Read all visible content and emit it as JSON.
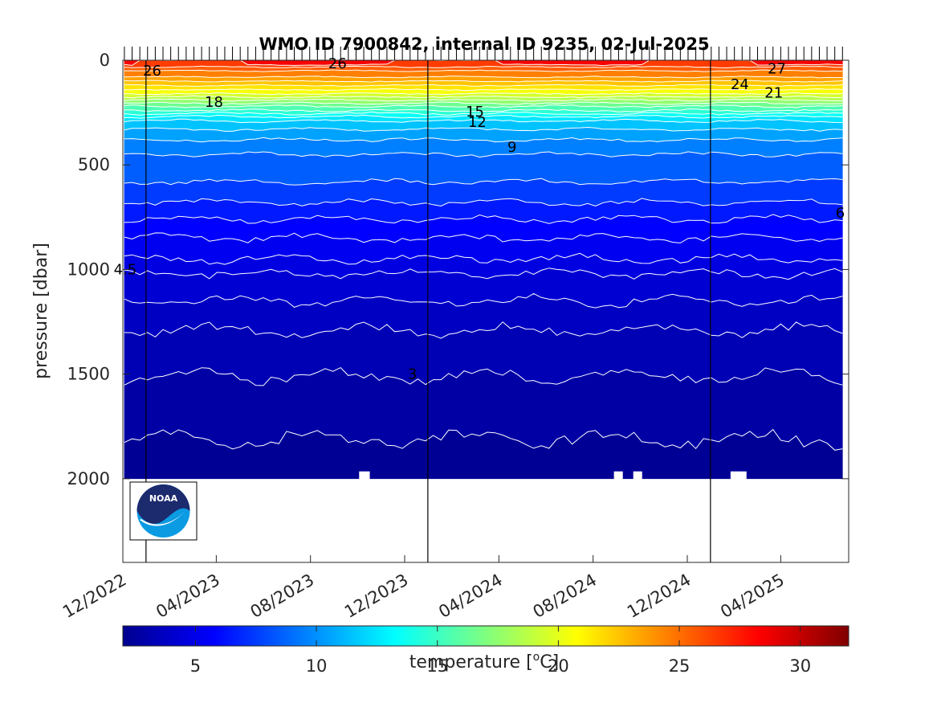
{
  "chart_data": {
    "type": "heatmap",
    "title": "WMO ID 7900842, internal ID 9235, 02-Jul-2025",
    "ylabel": "pressure [dbar]",
    "ylim": [
      0,
      2400
    ],
    "y_reversed": true,
    "y_ticks": [
      0,
      500,
      1000,
      1500,
      2000
    ],
    "y_tick_labels": [
      "0",
      "500",
      "1000",
      "1500",
      "2000"
    ],
    "x_range": [
      "2022-12-01",
      "2025-06-28"
    ],
    "x_ticks": [
      "2022-12-01",
      "2023-04-01",
      "2023-08-01",
      "2023-12-01",
      "2024-04-01",
      "2024-08-01",
      "2024-12-01",
      "2025-04-01"
    ],
    "x_tick_labels": [
      "12/2022",
      "04/2023",
      "08/2023",
      "12/2023",
      "04/2024",
      "08/2024",
      "12/2024",
      "04/2025"
    ],
    "year_lines": [
      "2022-12-31",
      "2023-12-31",
      "2024-12-31"
    ],
    "data_start": "2022-12-03",
    "data_end": "2025-06-25",
    "max_pressure": 2000,
    "isotherms": [
      {
        "temp": 27,
        "depth": 10
      },
      {
        "temp": 26,
        "depth": 32
      },
      {
        "temp": 25,
        "depth": 50
      },
      {
        "temp": 24,
        "depth": 80
      },
      {
        "temp": 23,
        "depth": 100
      },
      {
        "temp": 22,
        "depth": 120
      },
      {
        "temp": 21,
        "depth": 140
      },
      {
        "temp": 20,
        "depth": 160
      },
      {
        "temp": 19,
        "depth": 175
      },
      {
        "temp": 18,
        "depth": 190
      },
      {
        "temp": 17,
        "depth": 205
      },
      {
        "temp": 16,
        "depth": 220
      },
      {
        "temp": 15,
        "depth": 240
      },
      {
        "temp": 14,
        "depth": 255
      },
      {
        "temp": 13,
        "depth": 270
      },
      {
        "temp": 12,
        "depth": 290
      },
      {
        "temp": 11,
        "depth": 330
      },
      {
        "temp": 10,
        "depth": 380
      },
      {
        "temp": 9,
        "depth": 450
      },
      {
        "temp": 8,
        "depth": 580
      },
      {
        "temp": 7,
        "depth": 680
      },
      {
        "temp": 6,
        "depth": 760
      },
      {
        "temp": 5.5,
        "depth": 850
      },
      {
        "temp": 5,
        "depth": 950
      },
      {
        "temp": 4.5,
        "depth": 1020
      },
      {
        "temp": 4,
        "depth": 1150
      },
      {
        "temp": 3.5,
        "depth": 1290
      },
      {
        "temp": 3,
        "depth": 1510
      },
      {
        "temp": 2.5,
        "depth": 1810
      }
    ],
    "contour_labels": [
      {
        "text": "26",
        "date": "2023-01-08",
        "p": 50
      },
      {
        "text": "26",
        "date": "2023-09-05",
        "p": 15
      },
      {
        "text": "27",
        "date": "2025-03-27",
        "p": 40
      },
      {
        "text": "24",
        "date": "2025-02-07",
        "p": 115
      },
      {
        "text": "21",
        "date": "2025-03-23",
        "p": 155
      },
      {
        "text": "18",
        "date": "2023-03-29",
        "p": 200
      },
      {
        "text": "15",
        "date": "2024-03-01",
        "p": 245
      },
      {
        "text": "12",
        "date": "2024-03-04",
        "p": 295
      },
      {
        "text": "9",
        "date": "2024-04-18",
        "p": 415
      },
      {
        "text": "6",
        "date": "2025-06-17",
        "p": 730
      },
      {
        "text": "4.5",
        "date": "2022-12-04",
        "p": 1000
      },
      {
        "text": "3",
        "date": "2023-12-11",
        "p": 1500
      }
    ],
    "colorbar": {
      "label": "temperature [",
      "label_sup": "o",
      "label_end": "C]",
      "range": [
        2,
        32
      ],
      "ticks": [
        5,
        10,
        15,
        20,
        25,
        30
      ],
      "tick_labels": [
        "5",
        "10",
        "15",
        "20",
        "25",
        "30"
      ],
      "colormap": [
        "#00008f",
        "#0000ff",
        "#00ffff",
        "#ffff00",
        "#ff0000",
        "#800000"
      ]
    }
  },
  "logo": {
    "text": "NOAA"
  }
}
